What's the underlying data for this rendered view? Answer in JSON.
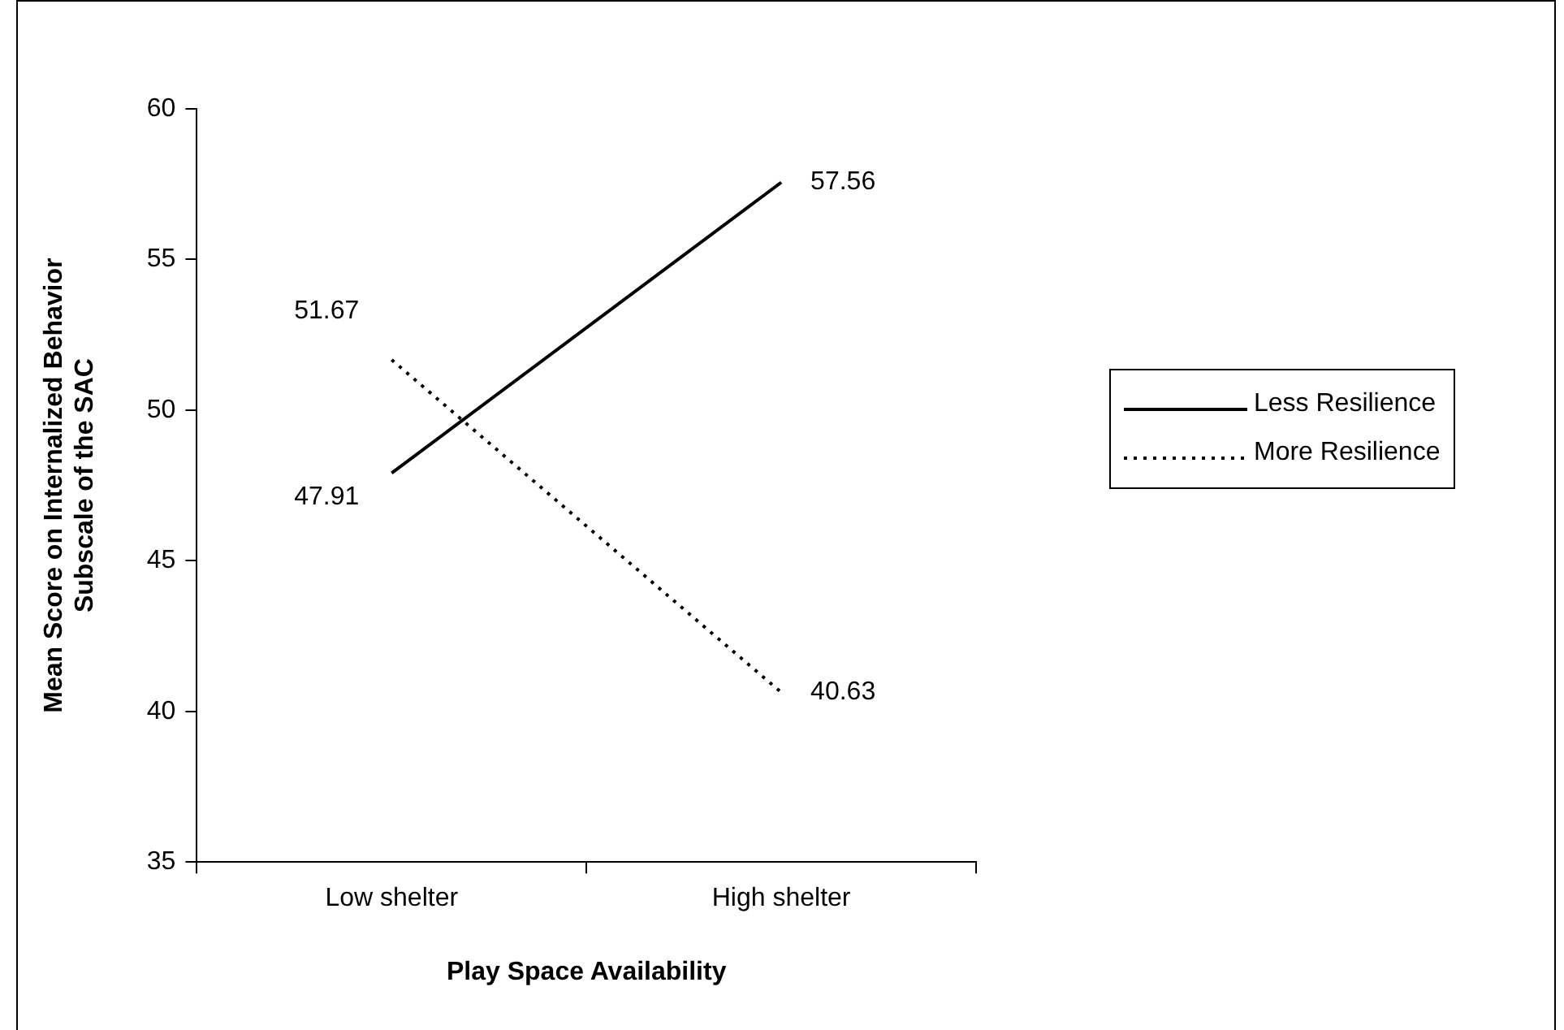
{
  "chart_data": {
    "type": "line",
    "xlabel": "Play Space Availability",
    "ylabel": "Mean Score on Internalized Behavior Subscale of the SAC",
    "categories": [
      "Low shelter",
      "High shelter"
    ],
    "series": [
      {
        "name": "Less Resilience",
        "color": "#000000",
        "values": [
          47.91,
          57.56
        ],
        "line_style": "solid"
      },
      {
        "name": "More Resilience",
        "color": "#000000",
        "values": [
          51.67,
          40.63
        ],
        "line_style": "dotted"
      }
    ],
    "ylim": [
      35,
      60
    ],
    "yticks": [
      35,
      40,
      45,
      50,
      55,
      60
    ],
    "grid": false,
    "legend": "right",
    "marker": "none",
    "data_labels": true
  }
}
